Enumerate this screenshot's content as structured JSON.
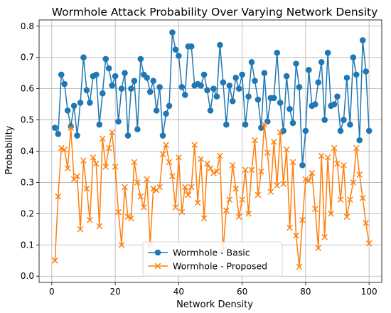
{
  "chart_data": {
    "type": "line",
    "title": "Wormhole Attack Probability Over Varying Network Density",
    "xlabel": "Network Density",
    "ylabel": "Probability",
    "xlim": [
      -4,
      104
    ],
    "ylim": [
      -0.02,
      0.82
    ],
    "xticks": [
      0,
      20,
      40,
      60,
      80,
      100
    ],
    "yticks": [
      0.0,
      0.1,
      0.2,
      0.3,
      0.4,
      0.5,
      0.6,
      0.7,
      0.8
    ],
    "xtick_labels": [
      "0",
      "20",
      "40",
      "60",
      "80",
      "100"
    ],
    "ytick_labels": [
      "0.0",
      "0.1",
      "0.2",
      "0.3",
      "0.4",
      "0.5",
      "0.6",
      "0.7",
      "0.8"
    ],
    "grid": true,
    "legend_position": "lower-center",
    "x": [
      1,
      2,
      3,
      4,
      5,
      6,
      7,
      8,
      9,
      10,
      11,
      12,
      13,
      14,
      15,
      16,
      17,
      18,
      19,
      20,
      21,
      22,
      23,
      24,
      25,
      26,
      27,
      28,
      29,
      30,
      31,
      32,
      33,
      34,
      35,
      36,
      37,
      38,
      39,
      40,
      41,
      42,
      43,
      44,
      45,
      46,
      47,
      48,
      49,
      50,
      51,
      52,
      53,
      54,
      55,
      56,
      57,
      58,
      59,
      60,
      61,
      62,
      63,
      64,
      65,
      66,
      67,
      68,
      69,
      70,
      71,
      72,
      73,
      74,
      75,
      76,
      77,
      78,
      79,
      80,
      81,
      82,
      83,
      84,
      85,
      86,
      87,
      88,
      89,
      90,
      91,
      92,
      93,
      94,
      95,
      96,
      97,
      98,
      99,
      100
    ],
    "series": [
      {
        "name": "Wormhole - Basic",
        "color": "#1f77b4",
        "marker": "circle",
        "values": [
          0.475,
          0.455,
          0.645,
          0.615,
          0.53,
          0.48,
          0.545,
          0.45,
          0.555,
          0.7,
          0.595,
          0.555,
          0.64,
          0.645,
          0.485,
          0.585,
          0.695,
          0.665,
          0.61,
          0.64,
          0.495,
          0.6,
          0.65,
          0.45,
          0.6,
          0.625,
          0.47,
          0.695,
          0.645,
          0.635,
          0.59,
          0.625,
          0.53,
          0.605,
          0.45,
          0.52,
          0.545,
          0.78,
          0.725,
          0.705,
          0.605,
          0.58,
          0.735,
          0.735,
          0.61,
          0.615,
          0.61,
          0.645,
          0.595,
          0.53,
          0.6,
          0.575,
          0.74,
          0.62,
          0.485,
          0.61,
          0.56,
          0.635,
          0.6,
          0.645,
          0.485,
          0.575,
          0.685,
          0.625,
          0.565,
          0.475,
          0.65,
          0.495,
          0.57,
          0.57,
          0.715,
          0.555,
          0.465,
          0.64,
          0.535,
          0.49,
          0.68,
          0.605,
          0.355,
          0.465,
          0.66,
          0.545,
          0.55,
          0.62,
          0.685,
          0.5,
          0.715,
          0.545,
          0.55,
          0.575,
          0.465,
          0.5,
          0.635,
          0.485,
          0.7,
          0.645,
          0.435,
          0.755,
          0.655,
          0.465
        ]
      },
      {
        "name": "Wormhole - Proposed",
        "color": "#ff7f0e",
        "marker": "x",
        "values": [
          0.05,
          0.255,
          0.41,
          0.405,
          0.345,
          0.475,
          0.31,
          0.32,
          0.15,
          0.37,
          0.28,
          0.18,
          0.38,
          0.36,
          0.16,
          0.44,
          0.35,
          0.41,
          0.46,
          0.35,
          0.205,
          0.1,
          0.285,
          0.19,
          0.185,
          0.365,
          0.3,
          0.255,
          0.22,
          0.31,
          0.1,
          0.28,
          0.275,
          0.285,
          0.39,
          0.42,
          0.365,
          0.32,
          0.22,
          0.38,
          0.205,
          0.285,
          0.26,
          0.285,
          0.42,
          0.235,
          0.375,
          0.185,
          0.36,
          0.345,
          0.33,
          0.335,
          0.385,
          0.085,
          0.21,
          0.245,
          0.355,
          0.28,
          0.19,
          0.245,
          0.34,
          0.2,
          0.34,
          0.435,
          0.26,
          0.335,
          0.485,
          0.395,
          0.27,
          0.43,
          0.29,
          0.46,
          0.295,
          0.405,
          0.155,
          0.365,
          0.13,
          0.03,
          0.18,
          0.31,
          0.305,
          0.33,
          0.215,
          0.09,
          0.385,
          0.125,
          0.38,
          0.2,
          0.41,
          0.36,
          0.245,
          0.355,
          0.19,
          0.245,
          0.3,
          0.41,
          0.325,
          0.25,
          0.17,
          0.105
        ]
      }
    ]
  }
}
